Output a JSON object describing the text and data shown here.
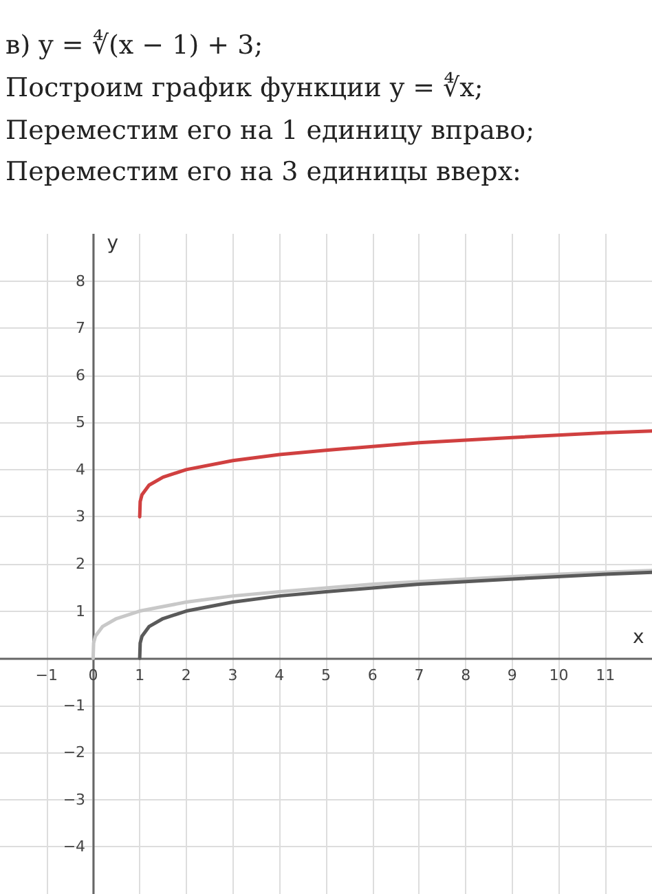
{
  "chart_data": {
    "type": "line",
    "title": "в) y = ∜(x − 1) + 3;",
    "annotations": [
      "Построим график функции y = ∜x;",
      "Переместим его на 1 единицу вправо;",
      "Переместим его на 3 единицы вверх:"
    ],
    "xlabel": "x",
    "ylabel": "y",
    "series": [
      {
        "color": "#c8c8c8",
        "x": [
          0,
          0.01,
          0.05,
          0.2,
          0.5,
          1,
          2,
          3,
          4,
          6,
          8,
          10,
          12
        ],
        "values": [
          0,
          0.32,
          0.47,
          0.67,
          0.84,
          1,
          1.19,
          1.32,
          1.41,
          1.57,
          1.68,
          1.78,
          1.86
        ]
      },
      {
        "color": "#5a5a5a",
        "x": [
          1,
          1.01,
          1.05,
          1.2,
          1.5,
          2,
          3,
          4,
          5,
          7,
          9,
          11,
          12
        ],
        "values": [
          0,
          0.32,
          0.47,
          0.67,
          0.84,
          1,
          1.19,
          1.32,
          1.41,
          1.57,
          1.68,
          1.78,
          1.82
        ]
      },
      {
        "color": "#d04040",
        "x": [
          1,
          1.01,
          1.05,
          1.2,
          1.5,
          2,
          3,
          4,
          5,
          7,
          9,
          11,
          12
        ],
        "values": [
          3,
          3.32,
          3.47,
          3.67,
          3.84,
          4,
          4.19,
          4.32,
          4.41,
          4.57,
          4.68,
          4.78,
          4.82
        ]
      }
    ],
    "xlim": [
      -2,
      12
    ],
    "xticks": [
      -1,
      0,
      1,
      2,
      3,
      4,
      5,
      6,
      7,
      8,
      9,
      10,
      11
    ],
    "ylim": [
      -5,
      9
    ],
    "yticks": [
      -4,
      -3,
      -2,
      -1,
      1,
      2,
      3,
      4,
      5,
      6,
      7,
      8
    ],
    "grid": true,
    "marker": "none",
    "line_style": "solid"
  }
}
